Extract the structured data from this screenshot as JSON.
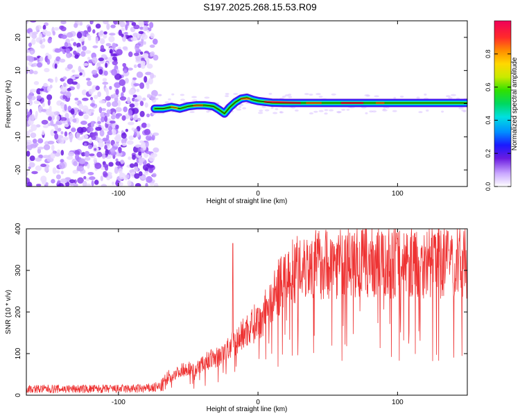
{
  "title": "S197.2025.268.15.53.R09",
  "chart_data": [
    {
      "type": "heatmap",
      "name": "spectrogram",
      "xlabel": "Height of straight line (km)",
      "ylabel": "Frequency (Hz)",
      "xlim": [
        -166,
        150
      ],
      "ylim": [
        -25,
        25
      ],
      "xticks": [
        -100,
        0,
        100
      ],
      "xtick_labels": [
        "-100",
        "0",
        "100"
      ],
      "yticks": [
        -20,
        -10,
        0,
        10,
        20
      ],
      "ytick_labels": [
        "-20",
        "-10",
        "0",
        "10",
        "20"
      ],
      "colorbar": {
        "label": "Normalized spectral amplitude",
        "range": [
          0,
          1
        ],
        "ticks": [
          0,
          0.2,
          0.4,
          0.6,
          0.8
        ],
        "tick_labels": [
          "0.0",
          "0.2",
          "0.4",
          "0.6",
          "0.8"
        ]
      },
      "noise_region_x": [
        -166,
        -75
      ],
      "signal_track": {
        "x": [
          -74,
          -68,
          -62,
          -56,
          -50,
          -44,
          -38,
          -32,
          -28,
          -24,
          -20,
          -16,
          -12,
          -8,
          -4,
          0,
          10,
          20,
          40,
          60,
          80,
          100,
          120,
          150
        ],
        "freq": [
          -1.5,
          -1.5,
          -1.0,
          -1.5,
          -0.8,
          -0.5,
          -0.5,
          -0.8,
          -1.8,
          -3.0,
          -1.0,
          0.5,
          1.5,
          1.8,
          1.2,
          0.8,
          0.3,
          0.2,
          0.2,
          0.2,
          0.2,
          0.2,
          0.2,
          0.2
        ]
      }
    },
    {
      "type": "line",
      "name": "snr",
      "xlabel": "Height of straight line (km)",
      "ylabel": "SNR (10 * v/v)",
      "xlim": [
        -166,
        150
      ],
      "ylim": [
        0,
        400
      ],
      "xticks": [
        -100,
        0,
        100
      ],
      "xtick_labels": [
        "-100",
        "0",
        "100"
      ],
      "yticks": [
        0,
        100,
        200,
        300,
        400
      ],
      "ytick_labels": [
        "0",
        "100",
        "200",
        "300",
        "400"
      ],
      "color": "#ee3333",
      "envelope": {
        "x": [
          -166,
          -130,
          -100,
          -80,
          -70,
          -65,
          -60,
          -55,
          -50,
          -45,
          -40,
          -35,
          -30,
          -25,
          -20,
          -15,
          -10,
          -5,
          0,
          5,
          10,
          15,
          20,
          25,
          30,
          40,
          60,
          80,
          100,
          120,
          150
        ],
        "mean": [
          15,
          15,
          15,
          16,
          20,
          35,
          50,
          60,
          65,
          60,
          75,
          85,
          90,
          100,
          115,
          130,
          150,
          165,
          180,
          200,
          230,
          260,
          285,
          300,
          310,
          315,
          320,
          320,
          320,
          320,
          320
        ]
      },
      "spike": {
        "x": -18,
        "value": 365
      }
    }
  ]
}
